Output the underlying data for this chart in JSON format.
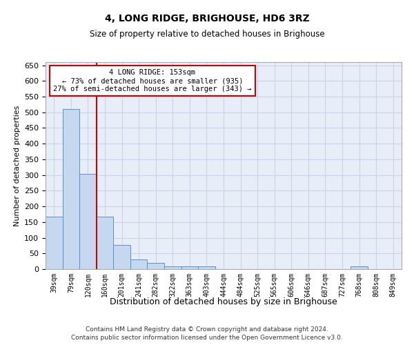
{
  "title": "4, LONG RIDGE, BRIGHOUSE, HD6 3RZ",
  "subtitle": "Size of property relative to detached houses in Brighouse",
  "xlabel": "Distribution of detached houses by size in Brighouse",
  "ylabel": "Number of detached properties",
  "bin_labels": [
    "39sqm",
    "79sqm",
    "120sqm",
    "160sqm",
    "201sqm",
    "241sqm",
    "282sqm",
    "322sqm",
    "363sqm",
    "403sqm",
    "444sqm",
    "484sqm",
    "525sqm",
    "565sqm",
    "606sqm",
    "646sqm",
    "687sqm",
    "727sqm",
    "768sqm",
    "808sqm",
    "849sqm"
  ],
  "bar_heights": [
    168,
    510,
    303,
    168,
    78,
    30,
    20,
    8,
    8,
    8,
    0,
    0,
    0,
    0,
    0,
    0,
    0,
    0,
    8,
    0,
    0
  ],
  "bar_color": "#c5d8f0",
  "bar_edge_color": "#5b8fc9",
  "grid_color": "#c8d4e8",
  "background_color": "#e8eef8",
  "annotation_line1": "4 LONG RIDGE: 153sqm",
  "annotation_line2": "← 73% of detached houses are smaller (935)",
  "annotation_line3": "27% of semi-detached houses are larger (343) →",
  "annotation_box_color": "#ffffff",
  "annotation_box_edge_color": "#cc0000",
  "red_line_x": 3.0,
  "ylim": [
    0,
    660
  ],
  "yticks": [
    0,
    50,
    100,
    150,
    200,
    250,
    300,
    350,
    400,
    450,
    500,
    550,
    600,
    650
  ],
  "footer_line1": "Contains HM Land Registry data © Crown copyright and database right 2024.",
  "footer_line2": "Contains public sector information licensed under the Open Government Licence v3.0."
}
